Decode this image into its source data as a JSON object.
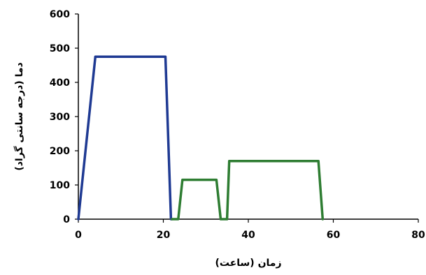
{
  "chart_data": {
    "type": "line",
    "xlabel": "زمان (ساعت)",
    "ylabel": "دما (درجه سانتی گراد)",
    "xlim": [
      0,
      80
    ],
    "ylim": [
      0,
      600
    ],
    "xticks": [
      0,
      20,
      40,
      60,
      80
    ],
    "yticks": [
      0,
      100,
      200,
      300,
      400,
      500,
      600
    ],
    "grid": false,
    "legend": "none",
    "series": [
      {
        "color": "#1f3a93",
        "points": [
          [
            0,
            0
          ],
          [
            4,
            475
          ],
          [
            20.5,
            475
          ],
          [
            21.8,
            0
          ],
          [
            22,
            0
          ]
        ]
      },
      {
        "color": "#2e7d32",
        "points": [
          [
            22,
            0
          ],
          [
            23.5,
            0
          ],
          [
            24.5,
            115
          ],
          [
            32.5,
            115
          ],
          [
            33.5,
            0
          ],
          [
            35,
            0
          ],
          [
            35.5,
            170
          ],
          [
            56.5,
            170
          ],
          [
            57.5,
            0
          ]
        ]
      }
    ]
  }
}
